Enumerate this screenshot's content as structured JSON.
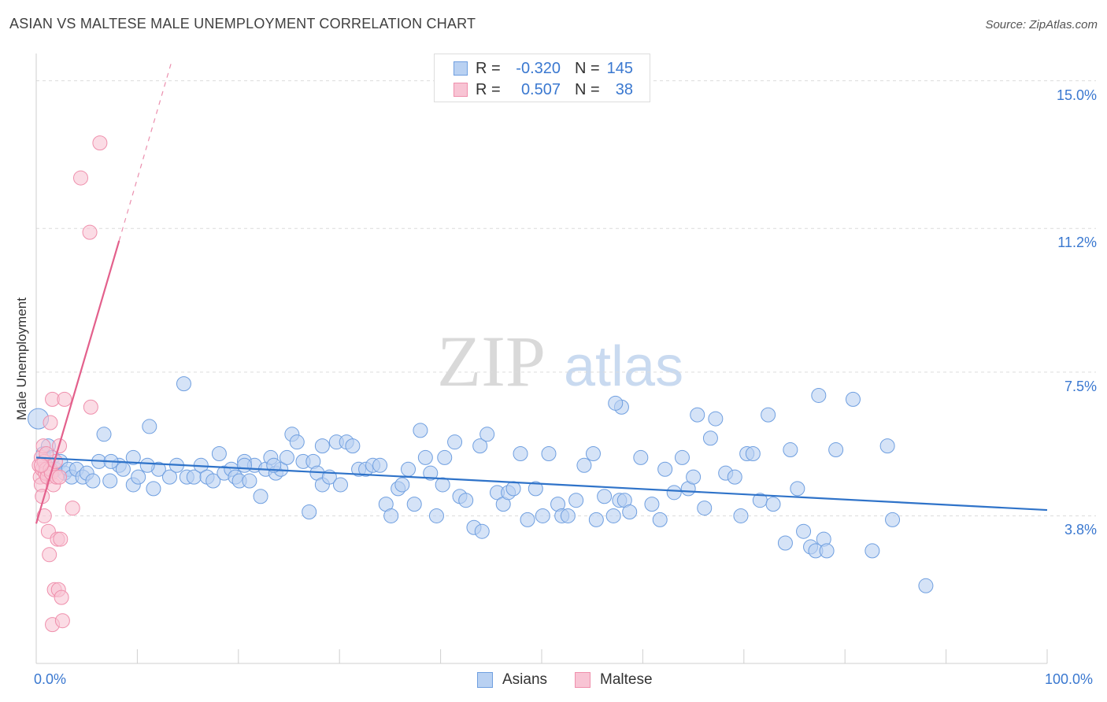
{
  "chart_data": {
    "type": "scatter",
    "title": "ASIAN VS MALTESE MALE UNEMPLOYMENT CORRELATION CHART",
    "source": "Source: ZipAtlas.com",
    "watermark": {
      "zip": "ZIP",
      "atlas": "atlas"
    },
    "xlabel": "",
    "ylabel": "Male Unemployment",
    "xlim": [
      0,
      100
    ],
    "ylim": [
      0,
      15.5
    ],
    "x_tick_labels": {
      "left": "0.0%",
      "right": "100.0%"
    },
    "y_ticks": [
      {
        "value": 3.8,
        "label": "3.8%"
      },
      {
        "value": 7.5,
        "label": "7.5%"
      },
      {
        "value": 11.2,
        "label": "11.2%"
      },
      {
        "value": 15.0,
        "label": "15.0%"
      }
    ],
    "grid": true,
    "legend_position": "top-center",
    "stats": [
      {
        "series": "Asians",
        "r_label": "R =",
        "r": "-0.320",
        "n_label": "N =",
        "n": "145"
      },
      {
        "series": "Maltese",
        "r_label": "R =",
        "r": "0.507",
        "n_label": "N =",
        "n": "38"
      }
    ],
    "series": [
      {
        "name": "Asians",
        "color": "#6f9fe0",
        "fill": "#b9d1f2",
        "line_color": "#2f73c9",
        "trend": {
          "x": [
            0,
            100
          ],
          "y": [
            5.3,
            3.95
          ],
          "dashed_from": null
        },
        "points": [
          [
            0.2,
            6.3
          ],
          [
            0.7,
            5.4
          ],
          [
            0.9,
            5.1
          ],
          [
            1.2,
            5.6
          ],
          [
            1.6,
            5.3
          ],
          [
            1.9,
            5.0
          ],
          [
            2.4,
            5.2
          ],
          [
            2.8,
            4.9
          ],
          [
            3.2,
            5.0
          ],
          [
            3.5,
            4.8
          ],
          [
            4.0,
            5.0
          ],
          [
            4.6,
            4.8
          ],
          [
            5.0,
            4.9
          ],
          [
            5.6,
            4.7
          ],
          [
            6.2,
            5.2
          ],
          [
            6.7,
            5.9
          ],
          [
            7.3,
            4.7
          ],
          [
            8.2,
            5.1
          ],
          [
            8.6,
            5.0
          ],
          [
            9.6,
            4.6
          ],
          [
            10.1,
            4.8
          ],
          [
            11.2,
            6.1
          ],
          [
            11.6,
            4.5
          ],
          [
            12.1,
            5.0
          ],
          [
            13.2,
            4.8
          ],
          [
            13.9,
            5.1
          ],
          [
            14.6,
            7.2
          ],
          [
            14.9,
            4.8
          ],
          [
            15.6,
            4.8
          ],
          [
            16.3,
            5.1
          ],
          [
            16.9,
            4.8
          ],
          [
            17.5,
            4.7
          ],
          [
            18.1,
            5.4
          ],
          [
            18.6,
            4.9
          ],
          [
            19.3,
            5.0
          ],
          [
            19.7,
            4.8
          ],
          [
            20.1,
            4.7
          ],
          [
            20.6,
            5.2
          ],
          [
            21.1,
            4.7
          ],
          [
            21.6,
            5.1
          ],
          [
            22.2,
            4.3
          ],
          [
            22.7,
            5.0
          ],
          [
            23.2,
            5.3
          ],
          [
            23.7,
            4.9
          ],
          [
            24.2,
            5.0
          ],
          [
            24.8,
            5.3
          ],
          [
            25.3,
            5.9
          ],
          [
            25.8,
            5.7
          ],
          [
            26.4,
            5.2
          ],
          [
            27.0,
            3.9
          ],
          [
            27.4,
            5.2
          ],
          [
            27.8,
            4.9
          ],
          [
            28.3,
            4.6
          ],
          [
            29.0,
            4.8
          ],
          [
            29.7,
            5.7
          ],
          [
            30.1,
            4.6
          ],
          [
            30.7,
            5.7
          ],
          [
            31.3,
            5.6
          ],
          [
            31.9,
            5.0
          ],
          [
            32.6,
            5.0
          ],
          [
            33.3,
            5.1
          ],
          [
            34.0,
            5.1
          ],
          [
            34.6,
            4.1
          ],
          [
            35.1,
            3.8
          ],
          [
            35.8,
            4.5
          ],
          [
            36.2,
            4.6
          ],
          [
            36.8,
            5.0
          ],
          [
            37.4,
            4.1
          ],
          [
            38.0,
            6.0
          ],
          [
            38.5,
            5.3
          ],
          [
            39.0,
            4.9
          ],
          [
            39.6,
            3.8
          ],
          [
            40.2,
            4.6
          ],
          [
            41.4,
            5.7
          ],
          [
            41.9,
            4.3
          ],
          [
            42.5,
            4.2
          ],
          [
            43.3,
            3.5
          ],
          [
            43.9,
            5.6
          ],
          [
            44.1,
            3.4
          ],
          [
            44.6,
            5.9
          ],
          [
            45.6,
            4.4
          ],
          [
            46.2,
            4.1
          ],
          [
            46.7,
            4.4
          ],
          [
            47.2,
            4.5
          ],
          [
            47.9,
            5.4
          ],
          [
            48.6,
            3.7
          ],
          [
            49.4,
            4.5
          ],
          [
            50.1,
            3.8
          ],
          [
            50.7,
            5.4
          ],
          [
            51.6,
            4.1
          ],
          [
            52.0,
            3.8
          ],
          [
            52.6,
            3.8
          ],
          [
            53.4,
            4.2
          ],
          [
            54.2,
            5.1
          ],
          [
            55.1,
            5.4
          ],
          [
            55.4,
            3.7
          ],
          [
            56.2,
            4.3
          ],
          [
            57.1,
            3.8
          ],
          [
            57.9,
            6.6
          ],
          [
            57.7,
            4.2
          ],
          [
            58.2,
            4.2
          ],
          [
            58.7,
            3.9
          ],
          [
            59.8,
            5.3
          ],
          [
            60.9,
            4.1
          ],
          [
            61.7,
            3.7
          ],
          [
            62.2,
            5.0
          ],
          [
            63.1,
            4.4
          ],
          [
            63.9,
            5.3
          ],
          [
            64.5,
            4.5
          ],
          [
            65.0,
            4.8
          ],
          [
            65.4,
            6.4
          ],
          [
            66.1,
            4.0
          ],
          [
            66.7,
            5.8
          ],
          [
            67.2,
            6.3
          ],
          [
            68.2,
            4.9
          ],
          [
            69.1,
            4.8
          ],
          [
            69.7,
            3.8
          ],
          [
            70.3,
            5.4
          ],
          [
            70.9,
            5.4
          ],
          [
            71.6,
            4.2
          ],
          [
            72.4,
            6.4
          ],
          [
            72.9,
            4.1
          ],
          [
            74.1,
            3.1
          ],
          [
            74.6,
            5.5
          ],
          [
            75.3,
            4.5
          ],
          [
            75.9,
            3.4
          ],
          [
            76.6,
            3.0
          ],
          [
            77.1,
            2.9
          ],
          [
            77.4,
            6.9
          ],
          [
            77.9,
            3.2
          ],
          [
            78.2,
            2.9
          ],
          [
            79.1,
            5.5
          ],
          [
            80.8,
            6.8
          ],
          [
            82.7,
            2.9
          ],
          [
            84.7,
            3.7
          ],
          [
            84.2,
            5.6
          ],
          [
            88.0,
            2.0
          ],
          [
            28.3,
            5.6
          ],
          [
            57.3,
            6.7
          ],
          [
            9.6,
            5.3
          ],
          [
            11.0,
            5.1
          ],
          [
            20.6,
            5.1
          ],
          [
            23.5,
            5.1
          ],
          [
            7.4,
            5.2
          ],
          [
            40.4,
            5.3
          ]
        ]
      },
      {
        "name": "Maltese",
        "color": "#ef8fac",
        "fill": "#f8c4d4",
        "line_color": "#e3608c",
        "trend": {
          "x": [
            0,
            13.4
          ],
          "y": [
            3.6,
            15.5
          ],
          "dashed_from": 8.2
        },
        "points": [
          [
            0.3,
            5.1
          ],
          [
            0.4,
            4.8
          ],
          [
            0.5,
            4.6
          ],
          [
            0.5,
            5.3
          ],
          [
            0.6,
            4.3
          ],
          [
            0.6,
            5.0
          ],
          [
            0.7,
            5.6
          ],
          [
            0.8,
            5.2
          ],
          [
            0.9,
            4.9
          ],
          [
            1.0,
            5.0
          ],
          [
            1.1,
            4.8
          ],
          [
            1.2,
            3.4
          ],
          [
            1.3,
            2.8
          ],
          [
            1.4,
            6.2
          ],
          [
            1.4,
            5.0
          ],
          [
            1.5,
            4.9
          ],
          [
            1.6,
            6.8
          ],
          [
            1.6,
            1.0
          ],
          [
            1.7,
            4.6
          ],
          [
            1.8,
            1.9
          ],
          [
            1.9,
            5.2
          ],
          [
            2.0,
            4.8
          ],
          [
            2.1,
            3.2
          ],
          [
            2.2,
            1.9
          ],
          [
            2.3,
            5.6
          ],
          [
            2.3,
            4.8
          ],
          [
            2.4,
            3.2
          ],
          [
            2.5,
            1.7
          ],
          [
            2.6,
            1.1
          ],
          [
            2.8,
            6.8
          ],
          [
            3.6,
            4.0
          ],
          [
            4.4,
            12.5
          ],
          [
            5.3,
            11.1
          ],
          [
            6.3,
            13.4
          ],
          [
            5.4,
            6.6
          ],
          [
            0.8,
            3.8
          ],
          [
            1.0,
            5.4
          ],
          [
            0.5,
            5.1
          ]
        ]
      }
    ]
  },
  "legend": {
    "asians": "Asians",
    "maltese": "Maltese"
  }
}
